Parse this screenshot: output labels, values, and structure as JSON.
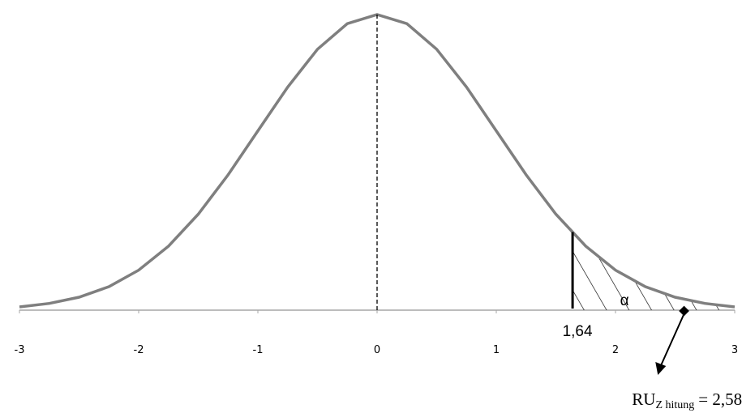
{
  "chart_data": {
    "type": "line",
    "x": [
      -3,
      -2.75,
      -2.5,
      -2.25,
      -2,
      -1.75,
      -1.5,
      -1.25,
      -1,
      -0.75,
      -0.5,
      -0.25,
      0,
      0.25,
      0.5,
      0.75,
      1,
      1.25,
      1.5,
      1.75,
      2,
      2.25,
      2.5,
      2.75,
      3
    ],
    "series": [
      {
        "color": "#7f7f7f",
        "values": [
          0.0044,
          0.0091,
          0.0175,
          0.0317,
          0.054,
          0.0863,
          0.1295,
          0.1826,
          0.242,
          0.3011,
          0.3521,
          0.3867,
          0.3989,
          0.3867,
          0.3521,
          0.3011,
          0.242,
          0.1826,
          0.1295,
          0.0863,
          0.054,
          0.0317,
          0.0175,
          0.0091,
          0.0044
        ]
      }
    ],
    "xlim": [
      -3,
      3
    ],
    "xticks": [
      -3,
      -2,
      -1,
      0,
      1,
      2,
      3
    ],
    "ylim": [
      0,
      0.4
    ],
    "mean": 0,
    "critical_value": {
      "value": 1.64,
      "label": "1,64"
    },
    "alpha_label": "α",
    "test_statistic": {
      "value": 2.58,
      "name": "RU",
      "subscript": "Z hitung",
      "label": "= 2,58"
    }
  }
}
